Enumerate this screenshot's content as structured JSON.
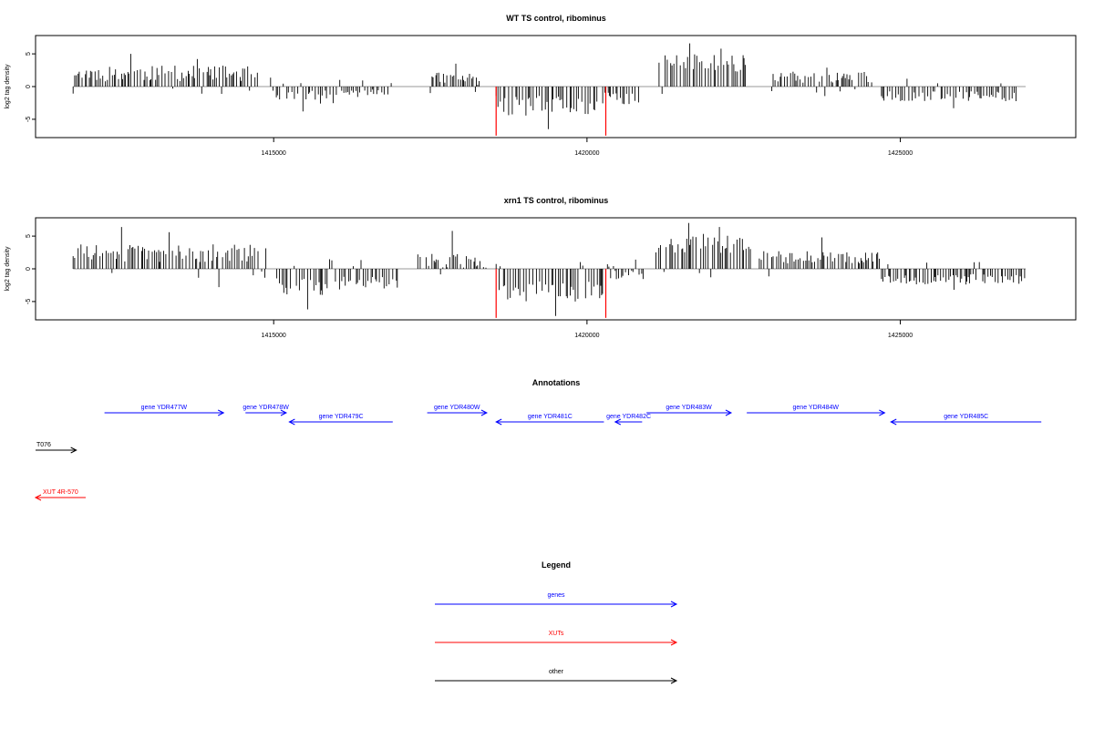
{
  "chart_data": [
    {
      "type": "bar",
      "title": "WT TS control, ribominus",
      "ylabel": "log2 tag density",
      "xlim": [
        1411200,
        1427800
      ],
      "ylim": [
        -7.8,
        7.8
      ],
      "x_ticks": [
        1415000,
        1420000,
        1425000
      ],
      "x_tick_labels": [
        "1415000",
        "1420000",
        "1425000"
      ],
      "y_ticks": [
        5,
        0,
        -5
      ],
      "y_tick_labels": [
        "5",
        "0",
        "-5"
      ],
      "baseline": 0,
      "highlight_color": "#ff0000",
      "highlight_bars": [
        {
          "x": 1418550,
          "y": -7.5
        },
        {
          "x": 1420300,
          "y": -7.5
        }
      ],
      "segments": [
        {
          "x_start": 1411800,
          "x_end": 1414750,
          "mean": 2.0,
          "spread": 1.2,
          "spikes": [
            5.0,
            4.2
          ]
        },
        {
          "x_start": 1414950,
          "x_end": 1415950,
          "mean": -1.6,
          "spread": 1.0,
          "spikes": [
            -3.8
          ]
        },
        {
          "x_start": 1416000,
          "x_end": 1416900,
          "mean": -1.0,
          "spread": 0.6,
          "spikes": []
        },
        {
          "x_start": 1417500,
          "x_end": 1418300,
          "mean": 1.2,
          "spread": 1.0,
          "spikes": [
            3.5
          ]
        },
        {
          "x_start": 1418550,
          "x_end": 1420200,
          "mean": -3.0,
          "spread": 1.6,
          "spikes": [
            -6.5
          ]
        },
        {
          "x_start": 1420250,
          "x_end": 1420850,
          "mean": -1.8,
          "spread": 1.0,
          "spikes": []
        },
        {
          "x_start": 1421150,
          "x_end": 1422550,
          "mean": 3.6,
          "spread": 1.6,
          "spikes": [
            6.6,
            5.8
          ]
        },
        {
          "x_start": 1422950,
          "x_end": 1424550,
          "mean": 1.4,
          "spread": 0.9,
          "spikes": [
            2.9
          ]
        },
        {
          "x_start": 1424700,
          "x_end": 1426850,
          "mean": -1.5,
          "spread": 0.8,
          "spikes": [
            -3.3
          ]
        }
      ]
    },
    {
      "type": "bar",
      "title": "xrn1 TS control, ribominus",
      "ylabel": "log2 tag density",
      "xlim": [
        1411200,
        1427800
      ],
      "ylim": [
        -7.8,
        7.8
      ],
      "x_ticks": [
        1415000,
        1420000,
        1425000
      ],
      "x_tick_labels": [
        "1415000",
        "1420000",
        "1425000"
      ],
      "y_ticks": [
        5,
        0,
        -5
      ],
      "y_tick_labels": [
        "5",
        "0",
        "-5"
      ],
      "baseline": 0,
      "highlight_color": "#ff0000",
      "highlight_bars": [
        {
          "x": 1418550,
          "y": -7.5
        },
        {
          "x": 1420300,
          "y": -7.5
        }
      ],
      "segments": [
        {
          "x_start": 1411800,
          "x_end": 1414900,
          "mean": 2.4,
          "spread": 1.4,
          "spikes": [
            6.4,
            5.6,
            -2.8
          ]
        },
        {
          "x_start": 1415050,
          "x_end": 1416000,
          "mean": -2.6,
          "spread": 1.4,
          "spikes": [
            -6.2
          ]
        },
        {
          "x_start": 1416050,
          "x_end": 1417000,
          "mean": -2.2,
          "spread": 1.0,
          "spikes": []
        },
        {
          "x_start": 1417300,
          "x_end": 1418400,
          "mean": 1.2,
          "spread": 1.2,
          "spikes": [
            5.8
          ]
        },
        {
          "x_start": 1418550,
          "x_end": 1420250,
          "mean": -3.4,
          "spread": 1.6,
          "spikes": [
            -7.2
          ]
        },
        {
          "x_start": 1420300,
          "x_end": 1420900,
          "mean": -1.0,
          "spread": 0.8,
          "spikes": []
        },
        {
          "x_start": 1421100,
          "x_end": 1422650,
          "mean": 3.8,
          "spread": 1.6,
          "spikes": [
            7.0,
            6.4
          ]
        },
        {
          "x_start": 1422750,
          "x_end": 1424700,
          "mean": 1.8,
          "spread": 1.0,
          "spikes": [
            4.8
          ]
        },
        {
          "x_start": 1424700,
          "x_end": 1427000,
          "mean": -1.6,
          "spread": 0.8,
          "spikes": [
            -3.2
          ]
        }
      ]
    }
  ],
  "annotations": {
    "title": "Annotations",
    "features": [
      {
        "label": "gene YDR477W",
        "start": 1412300,
        "end": 1414200,
        "strand": "+",
        "category": "genes",
        "row": 0
      },
      {
        "label": "gene YDR478W",
        "start": 1414550,
        "end": 1415200,
        "strand": "+",
        "category": "genes",
        "row": 0
      },
      {
        "label": "gene YDR479C",
        "start": 1415250,
        "end": 1416900,
        "strand": "-",
        "category": "genes",
        "row": 1
      },
      {
        "label": "gene YDR480W",
        "start": 1417450,
        "end": 1418400,
        "strand": "+",
        "category": "genes",
        "row": 0
      },
      {
        "label": "gene YDR481C",
        "start": 1418550,
        "end": 1420270,
        "strand": "-",
        "category": "genes",
        "row": 1
      },
      {
        "label": "gene YDR482C",
        "start": 1420450,
        "end": 1420880,
        "strand": "-",
        "category": "genes",
        "row": 1
      },
      {
        "label": "gene YDR483W",
        "start": 1420950,
        "end": 1422300,
        "strand": "+",
        "category": "genes",
        "row": 0
      },
      {
        "label": "gene YDR484W",
        "start": 1422550,
        "end": 1424750,
        "strand": "+",
        "category": "genes",
        "row": 0
      },
      {
        "label": "gene YDR485C",
        "start": 1424850,
        "end": 1427250,
        "strand": "-",
        "category": "genes",
        "row": 1
      },
      {
        "label": "T076",
        "start": 1411200,
        "end": 1411850,
        "strand": "+",
        "category": "other",
        "row": 2
      },
      {
        "label": "XUT 4R-570",
        "start": 1411200,
        "end": 1412000,
        "strand": "-",
        "category": "XUTs",
        "row": 3
      }
    ]
  },
  "legend": {
    "title": "Legend",
    "items": [
      {
        "label": "genes",
        "color": "#0000ff"
      },
      {
        "label": "XUTs",
        "color": "#ff0000"
      },
      {
        "label": "other",
        "color": "#000000"
      }
    ]
  },
  "colors": {
    "genes": "#0000ff",
    "XUTs": "#ff0000",
    "other": "#000000",
    "baseline": "#999999",
    "bars": "#000000"
  }
}
